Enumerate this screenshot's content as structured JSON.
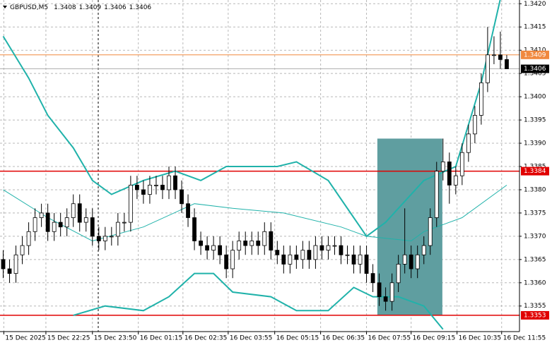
{
  "chart_data": {
    "type": "candlestick",
    "title": "GBPUSD,M5",
    "ylim": [
      1.33495,
      1.34208
    ],
    "xlim": [
      -0.5,
      81
    ],
    "yticks": [
      {
        "value": 1.3355,
        "label": "1.3355"
      },
      {
        "value": 1.336,
        "label": "1.3360"
      },
      {
        "value": 1.3365,
        "label": "1.3365"
      },
      {
        "value": 1.337,
        "label": "1.3370"
      },
      {
        "value": 1.3375,
        "label": "1.3375"
      },
      {
        "value": 1.338,
        "label": "1.3380"
      },
      {
        "value": 1.3385,
        "label": "1.3385"
      },
      {
        "value": 1.339,
        "label": "1.3390"
      },
      {
        "value": 1.3395,
        "label": "1.3395"
      },
      {
        "value": 1.34,
        "label": "1.3400"
      },
      {
        "value": 1.3405,
        "label": "1.3405"
      },
      {
        "value": 1.341,
        "label": "1.3410"
      },
      {
        "value": 1.3415,
        "label": "1.3415"
      },
      {
        "value": 1.342,
        "label": "1.3420"
      }
    ],
    "xticks": [
      {
        "value": 0.1,
        "label": "15 Dec 2025"
      },
      {
        "value": 6.7,
        "label": "15 Dec 22:25"
      },
      {
        "value": 14,
        "label": "15 Dec 23:50"
      },
      {
        "value": 21.2,
        "label": "16 Dec 01:15"
      },
      {
        "value": 28.2,
        "label": "16 Dec 02:35"
      },
      {
        "value": 35.3,
        "label": "16 Dec 03:55"
      },
      {
        "value": 42.6,
        "label": "16 Dec 05:15"
      },
      {
        "value": 49.8,
        "label": "16 Dec 06:35"
      },
      {
        "value": 57,
        "label": "16 Dec 07:55"
      },
      {
        "value": 64,
        "label": "16 Dec 09:15"
      },
      {
        "value": 71.2,
        "label": "16 Dec 10:35"
      },
      {
        "value": 78.2,
        "label": "16 Dec 11:55"
      }
    ],
    "grid": true,
    "up_color": "#ffffff",
    "down_color": "#000000",
    "open": [
      1.3365,
      1.3363,
      1.3362,
      1.3366,
      1.3368,
      1.3371,
      1.3374,
      1.3375,
      1.3371,
      1.3373,
      1.3372,
      1.3374,
      1.3377,
      1.3373,
      1.3374,
      1.337,
      1.3369,
      1.337,
      1.337,
      1.3373,
      1.3373,
      1.3381,
      1.338,
      1.3379,
      1.3381,
      1.3381,
      1.338,
      1.3383,
      1.338,
      1.3377,
      1.3374,
      1.3369,
      1.3368,
      1.3367,
      1.3368,
      1.3366,
      1.3363,
      1.3367,
      1.3369,
      1.3368,
      1.3369,
      1.3368,
      1.3371,
      1.3367,
      1.3366,
      1.3364,
      1.3366,
      1.3365,
      1.3367,
      1.3365,
      1.3368,
      1.3367,
      1.3368,
      1.3368,
      1.3366,
      1.3366,
      1.3364,
      1.3366,
      1.3362,
      1.336,
      1.3357,
      1.3356,
      1.336,
      1.3364,
      1.3366,
      1.3363,
      1.3366,
      1.3368,
      1.3374,
      1.3384,
      1.3386,
      1.3381,
      1.3383,
      1.3388,
      1.3392,
      1.3396,
      1.3403,
      1.3409,
      1.3409,
      1.3408
    ],
    "high": [
      1.3367,
      1.3365,
      1.3368,
      1.337,
      1.3373,
      1.3376,
      1.3377,
      1.3377,
      1.3375,
      1.3375,
      1.3376,
      1.3379,
      1.3379,
      1.3376,
      1.3376,
      1.3372,
      1.3372,
      1.3372,
      1.3375,
      1.3375,
      1.3383,
      1.3383,
      1.3382,
      1.3383,
      1.3383,
      1.3383,
      1.3385,
      1.3385,
      1.3382,
      1.3379,
      1.3376,
      1.3371,
      1.337,
      1.337,
      1.337,
      1.3368,
      1.3369,
      1.3371,
      1.3371,
      1.3371,
      1.3371,
      1.3373,
      1.3373,
      1.3369,
      1.3368,
      1.3368,
      1.3368,
      1.3369,
      1.3369,
      1.337,
      1.337,
      1.337,
      1.337,
      1.337,
      1.3368,
      1.3368,
      1.3368,
      1.3368,
      1.3364,
      1.3362,
      1.3359,
      1.3362,
      1.3366,
      1.3376,
      1.3368,
      1.3368,
      1.337,
      1.3376,
      1.3386,
      1.3391,
      1.3388,
      1.3385,
      1.339,
      1.3394,
      1.3398,
      1.3405,
      1.3415,
      1.3413,
      1.3414,
      1.3409
    ],
    "low": [
      1.3361,
      1.336,
      1.336,
      1.3364,
      1.3366,
      1.3369,
      1.3372,
      1.3369,
      1.3369,
      1.337,
      1.337,
      1.3372,
      1.3371,
      1.3371,
      1.3368,
      1.3367,
      1.3367,
      1.3368,
      1.3368,
      1.3371,
      1.3371,
      1.3378,
      1.3377,
      1.3377,
      1.3379,
      1.3378,
      1.3378,
      1.3378,
      1.3375,
      1.3372,
      1.3367,
      1.3366,
      1.3365,
      1.3365,
      1.3364,
      1.3361,
      1.3361,
      1.3365,
      1.3366,
      1.3366,
      1.3366,
      1.3366,
      1.3365,
      1.3364,
      1.3362,
      1.3362,
      1.3363,
      1.3363,
      1.3363,
      1.3363,
      1.3365,
      1.3365,
      1.3366,
      1.3364,
      1.3364,
      1.3362,
      1.3362,
      1.336,
      1.3358,
      1.3355,
      1.3354,
      1.3354,
      1.3358,
      1.3362,
      1.3361,
      1.3361,
      1.3364,
      1.3366,
      1.3372,
      1.3382,
      1.3377,
      1.3379,
      1.3381,
      1.3386,
      1.339,
      1.3394,
      1.3401,
      1.3407,
      1.3406,
      1.3406
    ],
    "close": [
      1.3363,
      1.3362,
      1.3366,
      1.3368,
      1.3371,
      1.3374,
      1.3375,
      1.3371,
      1.3373,
      1.3372,
      1.3374,
      1.3377,
      1.3373,
      1.3374,
      1.337,
      1.3369,
      1.337,
      1.337,
      1.3373,
      1.3373,
      1.3381,
      1.338,
      1.3379,
      1.3381,
      1.3381,
      1.338,
      1.3383,
      1.338,
      1.3377,
      1.3374,
      1.3369,
      1.3368,
      1.3367,
      1.3368,
      1.3366,
      1.3363,
      1.3367,
      1.3369,
      1.3368,
      1.3369,
      1.3368,
      1.3371,
      1.3367,
      1.3366,
      1.3364,
      1.3366,
      1.3365,
      1.3367,
      1.3365,
      1.3368,
      1.3367,
      1.3368,
      1.3368,
      1.3366,
      1.3366,
      1.3364,
      1.3366,
      1.3362,
      1.336,
      1.3357,
      1.3356,
      1.336,
      1.3364,
      1.3366,
      1.3363,
      1.3366,
      1.3368,
      1.3374,
      1.3384,
      1.3386,
      1.3381,
      1.3383,
      1.3388,
      1.3392,
      1.3396,
      1.3403,
      1.3409,
      1.3409,
      1.3408,
      1.3406
    ],
    "bands": [
      {
        "color": "#20b2aa",
        "x": [
          0,
          4,
          7,
          11,
          14,
          17,
          22,
          27,
          31,
          35,
          43,
          46,
          51,
          55,
          57,
          60,
          66,
          71,
          75,
          78
        ],
        "values": [
          1.3413,
          1.3404,
          1.3396,
          1.3389,
          1.3382,
          1.3379,
          1.3382,
          1.3384,
          1.3382,
          1.3385,
          1.3385,
          1.3386,
          1.3382,
          1.3374,
          1.337,
          1.3373,
          1.3382,
          1.3385,
          1.3403,
          1.3421
        ]
      },
      {
        "color": "#20b2aa",
        "x": [
          0,
          7,
          14,
          22,
          30,
          36,
          44,
          53,
          57,
          64,
          66,
          72,
          79
        ],
        "values": [
          1.338,
          1.3374,
          1.3369,
          1.3372,
          1.3377,
          1.3376,
          1.3375,
          1.3372,
          1.337,
          1.3369,
          1.3371,
          1.3374,
          1.3381
        ]
      },
      {
        "color": "#20b2aa",
        "x": [
          11,
          16,
          22,
          26,
          30,
          33,
          36,
          42,
          46,
          51,
          55,
          58,
          62,
          66,
          69
        ],
        "values": [
          1.3353,
          1.3355,
          1.3354,
          1.3357,
          1.3362,
          1.3362,
          1.3358,
          1.3357,
          1.3354,
          1.3354,
          1.3359,
          1.3357,
          1.3357,
          1.3355,
          1.335
        ]
      }
    ],
    "zone": {
      "color": "#5f9ea0",
      "x": [
        58.7,
        68.9
      ],
      "ylim": [
        1.3353,
        1.3391
      ]
    },
    "levels": [
      {
        "value": 1.3409,
        "color": "#f0883e"
      },
      {
        "value": 1.3406,
        "color": "#000000"
      },
      {
        "value": 1.3384,
        "color": "#e00000"
      },
      {
        "value": 1.3353,
        "color": "#e00000"
      }
    ]
  }
}
